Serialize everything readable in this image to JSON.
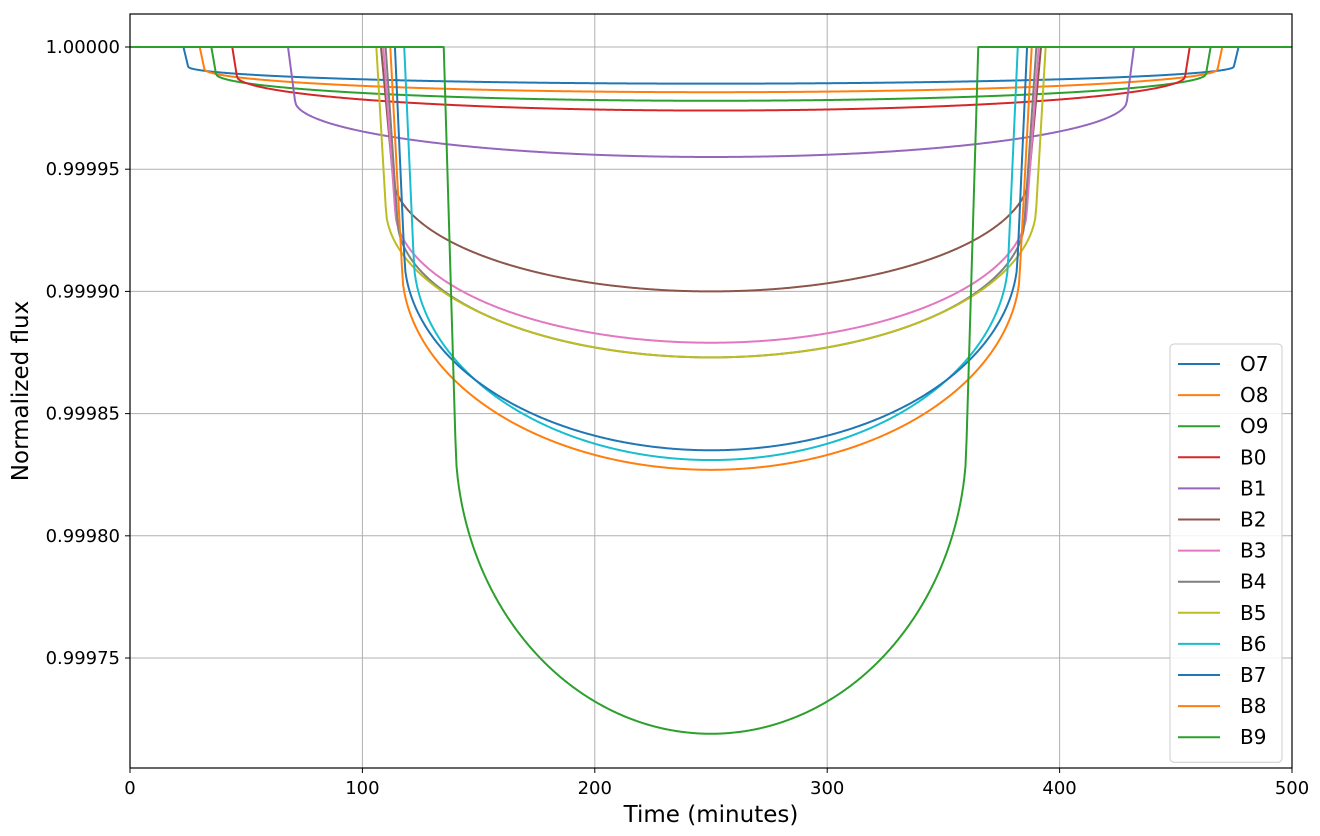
{
  "chart_data": {
    "type": "line",
    "title": "",
    "xlabel": "Time (minutes)",
    "ylabel": "Normalized flux",
    "xlim": [
      0,
      500
    ],
    "ylim": [
      0.999705,
      1.0000135
    ],
    "xticks": [
      0,
      100,
      200,
      300,
      400,
      500
    ],
    "xtick_labels": [
      "0",
      "100",
      "200",
      "300",
      "400",
      "500"
    ],
    "yticks": [
      0.99975,
      0.9998,
      0.99985,
      0.9999,
      0.99995,
      1.0
    ],
    "ytick_labels": [
      "0.99975",
      "0.99980",
      "0.99985",
      "0.99990",
      "0.99995",
      "1.00000"
    ],
    "grid": true,
    "legend_position": "lower-right",
    "series": [
      {
        "name": "O7",
        "color": "#1f77b4",
        "ingress_start": 23,
        "ingress_end": 25,
        "plateau": 0.999992,
        "mid_depth": 0.999985,
        "egress_start": 475,
        "egress_end": 477
      },
      {
        "name": "O8",
        "color": "#ff7f0e",
        "ingress_start": 30,
        "ingress_end": 32,
        "plateau": 0.999991,
        "mid_depth": 0.9999815,
        "egress_start": 468,
        "egress_end": 470
      },
      {
        "name": "O9",
        "color": "#2ca02c",
        "ingress_start": 35,
        "ingress_end": 37,
        "plateau": 0.999989,
        "mid_depth": 0.999978,
        "egress_start": 463,
        "egress_end": 465
      },
      {
        "name": "B0",
        "color": "#d62728",
        "ingress_start": 44,
        "ingress_end": 46,
        "plateau": 0.999988,
        "mid_depth": 0.999974,
        "egress_start": 454,
        "egress_end": 456
      },
      {
        "name": "B1",
        "color": "#9467bd",
        "ingress_start": 68,
        "ingress_end": 71,
        "plateau": 0.999978,
        "mid_depth": 0.999955,
        "egress_start": 429,
        "egress_end": 432
      },
      {
        "name": "B2",
        "color": "#8c564b",
        "ingress_start": 108,
        "ingress_end": 113,
        "plateau": 0.999948,
        "mid_depth": 0.9999,
        "egress_start": 387,
        "egress_end": 392
      },
      {
        "name": "B3",
        "color": "#e377c2",
        "ingress_start": 109,
        "ingress_end": 114,
        "plateau": 0.999934,
        "mid_depth": 0.999879,
        "egress_start": 386,
        "egress_end": 391
      },
      {
        "name": "B4",
        "color": "#7f7f7f",
        "ingress_start": 110,
        "ingress_end": 115,
        "plateau": 0.99993,
        "mid_depth": 0.999873,
        "egress_start": 385,
        "egress_end": 390
      },
      {
        "name": "B5",
        "color": "#bcbd22",
        "ingress_start": 106,
        "ingress_end": 110,
        "plateau": 0.999935,
        "mid_depth": 0.999873,
        "egress_start": 390,
        "egress_end": 394
      },
      {
        "name": "B6",
        "color": "#17becf",
        "ingress_start": 118,
        "ingress_end": 122,
        "plateau": 0.999915,
        "mid_depth": 0.999831,
        "egress_start": 378,
        "egress_end": 382
      },
      {
        "name": "B7",
        "color": "#1f77b4",
        "ingress_start": 114,
        "ingress_end": 118,
        "plateau": 0.999915,
        "mid_depth": 0.999835,
        "egress_start": 382,
        "egress_end": 386
      },
      {
        "name": "B8",
        "color": "#ff7f0e",
        "ingress_start": 112,
        "ingress_end": 117,
        "plateau": 0.99991,
        "mid_depth": 0.999827,
        "egress_start": 383,
        "egress_end": 388
      },
      {
        "name": "B9",
        "color": "#2ca02c",
        "ingress_start": 135,
        "ingress_end": 140,
        "plateau": 0.99984,
        "mid_depth": 0.999719,
        "egress_start": 360,
        "egress_end": 365
      }
    ]
  }
}
